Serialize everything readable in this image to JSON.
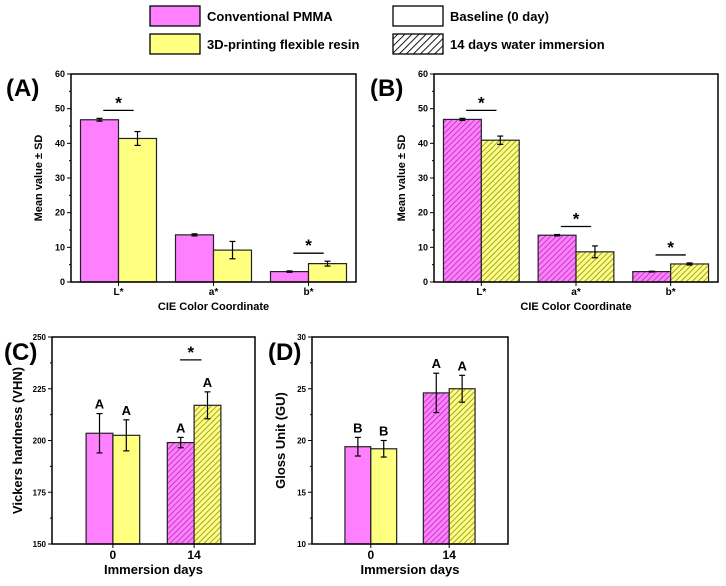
{
  "legend": {
    "items": [
      {
        "label": "Conventional PMMA",
        "fill": "#ff80ff",
        "hatch": false
      },
      {
        "label": "3D-printing flexible resin",
        "fill": "#ffff80",
        "hatch": false
      },
      {
        "label": "Baseline (0 day)",
        "fill": "#ffffff",
        "hatch": false
      },
      {
        "label": "14 days water immersion",
        "fill": "#ffffff",
        "hatch": true
      }
    ]
  },
  "colors": {
    "pmma": "#ff80ff",
    "resin": "#ffff80",
    "pmma_hatch": "#cc33cc",
    "resin_hatch": "#999933"
  },
  "chart_data": [
    {
      "panel": "(A)",
      "type": "bar",
      "xlabel": "CIE Color Coordinate",
      "ylabel": "Mean value ± SD",
      "ylim": [
        0,
        60
      ],
      "yticks": [
        0,
        10,
        20,
        30,
        40,
        50,
        60
      ],
      "categories": [
        "L*",
        "a*",
        "b*"
      ],
      "hatch": [
        false,
        false,
        false
      ],
      "series": [
        {
          "name": "Conventional PMMA",
          "values": [
            46.8,
            13.6,
            3.0
          ],
          "sd": [
            0.4,
            0.3,
            0.2
          ]
        },
        {
          "name": "3D-printing flexible resin",
          "values": [
            41.4,
            9.2,
            5.3
          ],
          "sd": [
            2.0,
            2.5,
            0.7
          ]
        }
      ],
      "labels": [
        [
          "",
          ""
        ],
        [
          "",
          ""
        ],
        [
          "",
          ""
        ]
      ],
      "significance": [
        "*",
        "",
        "*"
      ]
    },
    {
      "panel": "(B)",
      "type": "bar",
      "xlabel": "CIE Color Coordinate",
      "ylabel": "Mean value ± SD",
      "ylim": [
        0,
        60
      ],
      "yticks": [
        0,
        10,
        20,
        30,
        40,
        50,
        60
      ],
      "categories": [
        "L*",
        "a*",
        "b*"
      ],
      "hatch": [
        true,
        true,
        true
      ],
      "series": [
        {
          "name": "Conventional PMMA",
          "values": [
            46.9,
            13.5,
            3.0
          ],
          "sd": [
            0.3,
            0.2,
            0.1
          ]
        },
        {
          "name": "3D-printing flexible resin",
          "values": [
            40.9,
            8.7,
            5.2
          ],
          "sd": [
            1.2,
            1.7,
            0.3
          ]
        }
      ],
      "labels": [
        [
          "",
          ""
        ],
        [
          "",
          ""
        ],
        [
          "",
          ""
        ]
      ],
      "significance": [
        "*",
        "*",
        "*"
      ]
    },
    {
      "panel": "(C)",
      "type": "bar",
      "xlabel": "Immersion days",
      "ylabel": "Vickers hardness (VHN)",
      "ylim": [
        150,
        250
      ],
      "yticks": [
        150,
        175,
        200,
        225,
        250
      ],
      "categories": [
        "0",
        "14"
      ],
      "hatch": [
        false,
        true
      ],
      "series": [
        {
          "name": "Conventional PMMA",
          "values": [
            203.5,
            199.0
          ],
          "sd": [
            9.5,
            2.5
          ]
        },
        {
          "name": "3D-printing flexible resin",
          "values": [
            202.5,
            217.0
          ],
          "sd": [
            7.5,
            6.5
          ]
        }
      ],
      "labels": [
        [
          "A",
          "A"
        ],
        [
          "A",
          "A"
        ]
      ],
      "significance": [
        "",
        "*"
      ]
    },
    {
      "panel": "(D)",
      "type": "bar",
      "xlabel": "Immersion days",
      "ylabel": "Gloss Unit (GU)",
      "ylim": [
        10,
        30
      ],
      "yticks": [
        10,
        15,
        20,
        25,
        30
      ],
      "categories": [
        "0",
        "14"
      ],
      "hatch": [
        false,
        true
      ],
      "series": [
        {
          "name": "Conventional PMMA",
          "values": [
            19.4,
            24.6
          ],
          "sd": [
            0.9,
            1.9
          ]
        },
        {
          "name": "3D-printing flexible resin",
          "values": [
            19.2,
            25.0
          ],
          "sd": [
            0.8,
            1.3
          ]
        }
      ],
      "labels": [
        [
          "B",
          "B"
        ],
        [
          "A",
          "A"
        ]
      ],
      "significance": [
        "",
        ""
      ]
    }
  ]
}
